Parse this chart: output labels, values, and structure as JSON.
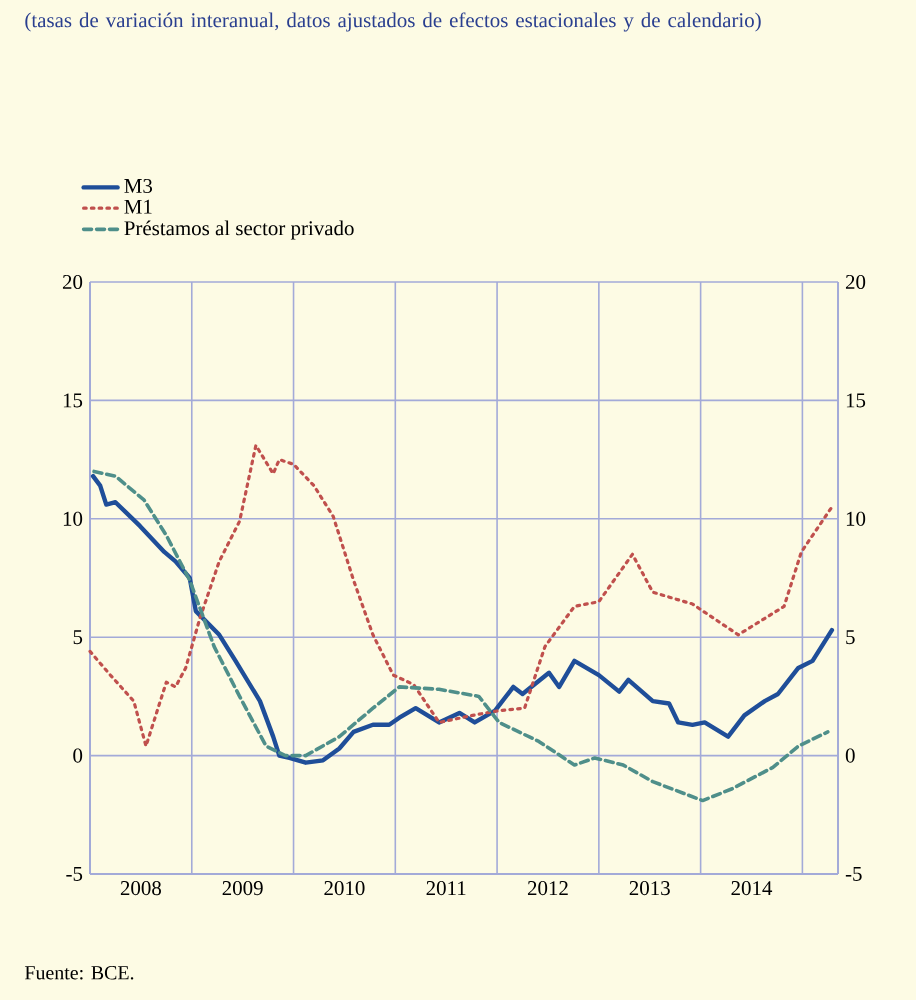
{
  "chart_data": {
    "type": "line",
    "title": "(tasas de variación interanual, datos ajustados de efectos estacionales y de calendario)",
    "annotations": [
      "Fuente: BCE."
    ],
    "xlim": [
      2008,
      2015.35
    ],
    "xticks": [
      {
        "value": 2008,
        "label": null
      },
      {
        "value": 2009,
        "label": null
      },
      {
        "value": 2010,
        "label": null
      },
      {
        "value": 2011,
        "label": null
      },
      {
        "value": 2012,
        "label": null
      },
      {
        "value": 2013,
        "label": null
      },
      {
        "value": 2014,
        "label": null
      },
      {
        "value": 2015,
        "label": null
      },
      {
        "value": 2008.5,
        "label": "2008"
      },
      {
        "value": 2009.5,
        "label": "2009"
      },
      {
        "value": 2010.5,
        "label": "2010"
      },
      {
        "value": 2011.5,
        "label": "2011"
      },
      {
        "value": 2012.5,
        "label": "2012"
      },
      {
        "value": 2013.5,
        "label": "2013"
      },
      {
        "value": 2014.5,
        "label": "2014"
      }
    ],
    "ylim": [
      -5,
      20
    ],
    "yticks": [
      -5,
      0,
      5,
      10,
      15,
      20
    ],
    "y2lim": [
      -5,
      20
    ],
    "y2ticks": [
      -5,
      0,
      5,
      10,
      15,
      20
    ],
    "grid": true,
    "legend": "top left",
    "marker": "none",
    "series": [
      {
        "name": "M3",
        "color": "#1f4e99",
        "line_style": "solid",
        "x": [
          2008.03,
          2008.1,
          2008.16,
          2008.25,
          2008.49,
          2008.73,
          2008.84,
          2008.98,
          2009.04,
          2009.27,
          2009.43,
          2009.67,
          2009.8,
          2009.86,
          2009.96,
          2010.12,
          2010.29,
          2010.45,
          2010.59,
          2010.78,
          2010.94,
          2011.04,
          2011.2,
          2011.43,
          2011.63,
          2011.78,
          2011.98,
          2012.16,
          2012.25,
          2012.51,
          2012.61,
          2012.76,
          2013.0,
          2013.2,
          2013.29,
          2013.53,
          2013.69,
          2013.78,
          2013.92,
          2014.04,
          2014.27,
          2014.43,
          2014.63,
          2014.76,
          2014.96,
          2015.1,
          2015.29
        ],
        "values": [
          11.8,
          11.4,
          10.6,
          10.7,
          9.7,
          8.6,
          8.2,
          7.5,
          6.1,
          5.1,
          4.0,
          2.3,
          0.8,
          0,
          -0.1,
          -0.3,
          -0.2,
          0.3,
          1.0,
          1.3,
          1.3,
          1.6,
          2.0,
          1.4,
          1.8,
          1.4,
          1.9,
          2.9,
          2.6,
          3.5,
          2.9,
          4.0,
          3.4,
          2.7,
          3.2,
          2.3,
          2.2,
          1.4,
          1.3,
          1.4,
          0.8,
          1.7,
          2.3,
          2.6,
          3.7,
          4.0,
          5.3
        ]
      },
      {
        "name": "M1",
        "color": "#c0504d",
        "line_style": "dotted",
        "x": [
          2008.0,
          2008.2,
          2008.43,
          2008.55,
          2008.75,
          2008.84,
          2008.94,
          2009.08,
          2009.27,
          2009.47,
          2009.63,
          2009.8,
          2009.86,
          2010.0,
          2010.2,
          2010.39,
          2010.59,
          2010.78,
          2010.98,
          2011.18,
          2011.43,
          2011.76,
          2012.02,
          2012.27,
          2012.47,
          2012.76,
          2013.0,
          2013.33,
          2013.53,
          2013.92,
          2014.37,
          2014.82,
          2014.99,
          2015.29
        ],
        "values": [
          4.4,
          3.4,
          2.3,
          0.4,
          3.1,
          2.9,
          3.7,
          5.8,
          8.2,
          9.9,
          13.1,
          11.9,
          12.5,
          12.3,
          11.4,
          10.1,
          7.4,
          5.1,
          3.4,
          3.0,
          1.4,
          1.7,
          1.9,
          2.0,
          4.6,
          6.3,
          6.5,
          8.5,
          6.9,
          6.4,
          5.1,
          6.3,
          8.6,
          10.5
        ]
      },
      {
        "name": "Préstamos al sector privado",
        "color": "#4f8f8a",
        "line_style": "dashed",
        "x": [
          2008.04,
          2008.25,
          2008.53,
          2008.75,
          2008.98,
          2009.22,
          2009.47,
          2009.73,
          2009.92,
          2010.12,
          2010.45,
          2010.78,
          2011.04,
          2011.43,
          2011.82,
          2012.02,
          2012.41,
          2012.76,
          2012.96,
          2013.24,
          2013.53,
          2014.02,
          2014.31,
          2014.71,
          2014.96,
          2015.25
        ],
        "values": [
          12.0,
          11.8,
          10.8,
          9.3,
          7.4,
          4.6,
          2.5,
          0.4,
          0,
          0,
          0.8,
          2.0,
          2.9,
          2.8,
          2.5,
          1.4,
          0.6,
          -0.4,
          -0.1,
          -0.4,
          -1.1,
          -1.9,
          -1.4,
          -0.5,
          0.4,
          1.0
        ]
      }
    ]
  }
}
